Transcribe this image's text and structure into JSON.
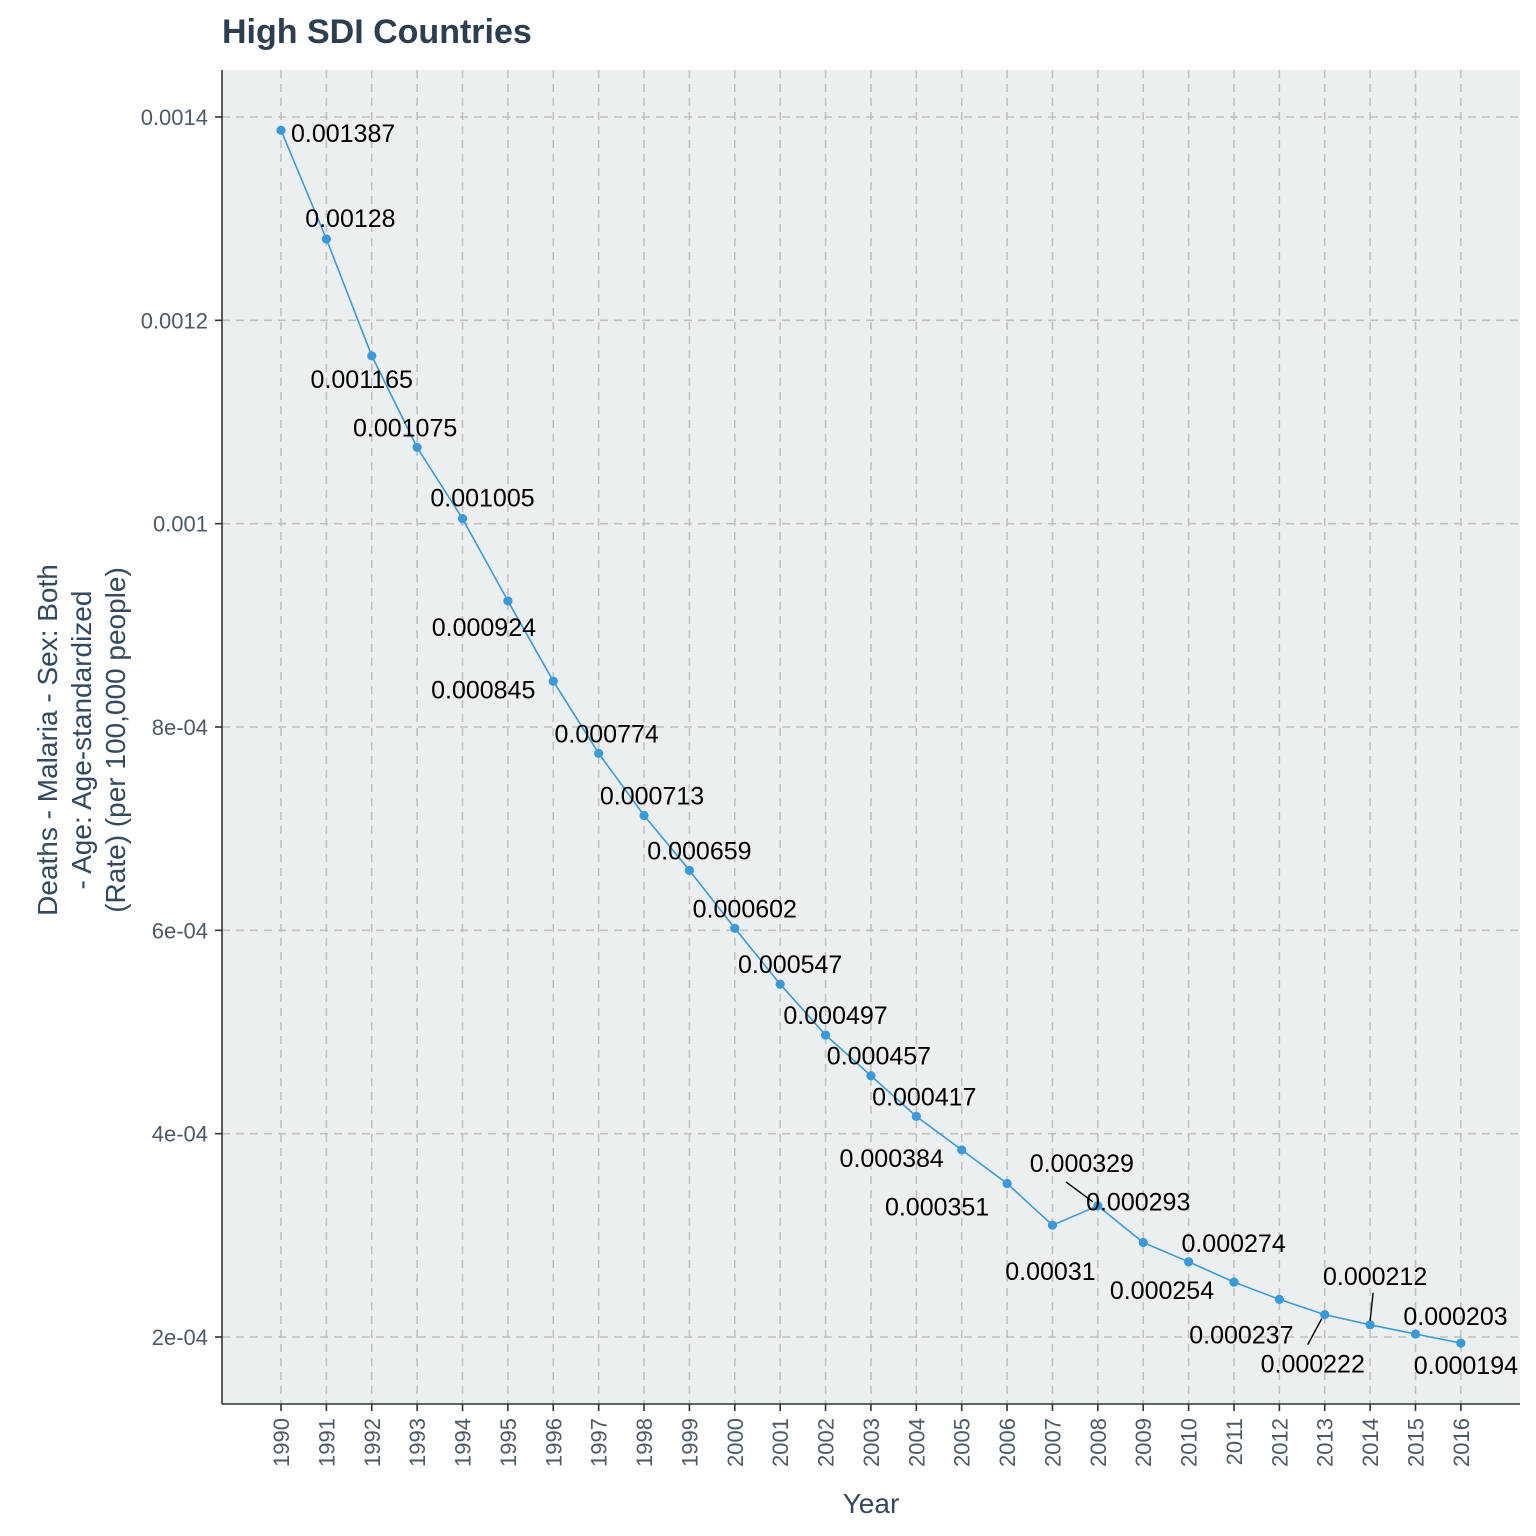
{
  "chart_data": {
    "type": "line",
    "title": "High SDI Countries",
    "xlabel": "Year",
    "ylabel_lines": [
      "Deaths - Malaria - Sex: Both",
      "- Age: Age-standardized",
      "(Rate) (per 100,000 people)"
    ],
    "x": [
      1990,
      1991,
      1992,
      1993,
      1994,
      1995,
      1996,
      1997,
      1998,
      1999,
      2000,
      2001,
      2002,
      2003,
      2004,
      2005,
      2006,
      2007,
      2008,
      2009,
      2010,
      2011,
      2012,
      2013,
      2014,
      2015,
      2016
    ],
    "series": [
      {
        "values": [
          0.001387,
          0.00128,
          0.001165,
          0.001075,
          0.001005,
          0.000924,
          0.000845,
          0.000774,
          0.000713,
          0.000659,
          0.000602,
          0.000547,
          0.000497,
          0.000457,
          0.000417,
          0.000384,
          0.000351,
          0.00031,
          0.000329,
          0.000293,
          0.000274,
          0.000254,
          0.000237,
          0.000222,
          0.000212,
          0.000203,
          0.000194
        ],
        "labels": [
          "0.001387",
          "0.00128",
          "0.001165",
          "0.001075",
          "0.001005",
          "0.000924",
          "0.000845",
          "0.000774",
          "0.000713",
          "0.000659",
          "0.000602",
          "0.000547",
          "0.000497",
          "0.000457",
          "0.000417",
          "0.000384",
          "0.000351",
          "0.00031",
          "0.000329",
          "0.000293",
          "0.000274",
          "0.000254",
          "0.000237",
          "0.000222",
          "0.000212",
          "0.000203",
          "0.000194"
        ]
      }
    ],
    "yticks": [
      0.0002,
      0.0004,
      0.0006,
      0.0008,
      0.001,
      0.0012,
      0.0014
    ],
    "ytick_labels": [
      "2e-04",
      "4e-04",
      "6e-04",
      "8e-04",
      "0.001",
      "0.0012",
      "0.0014"
    ],
    "ylim": [
      0.000155,
      0.00145
    ],
    "grid": true,
    "colors": {
      "line": "#3a9ad9",
      "panel_background": "#ebeff0",
      "grid": "#c0c0c0",
      "title": "#2c3e50",
      "axis_title": "#34495e"
    }
  }
}
